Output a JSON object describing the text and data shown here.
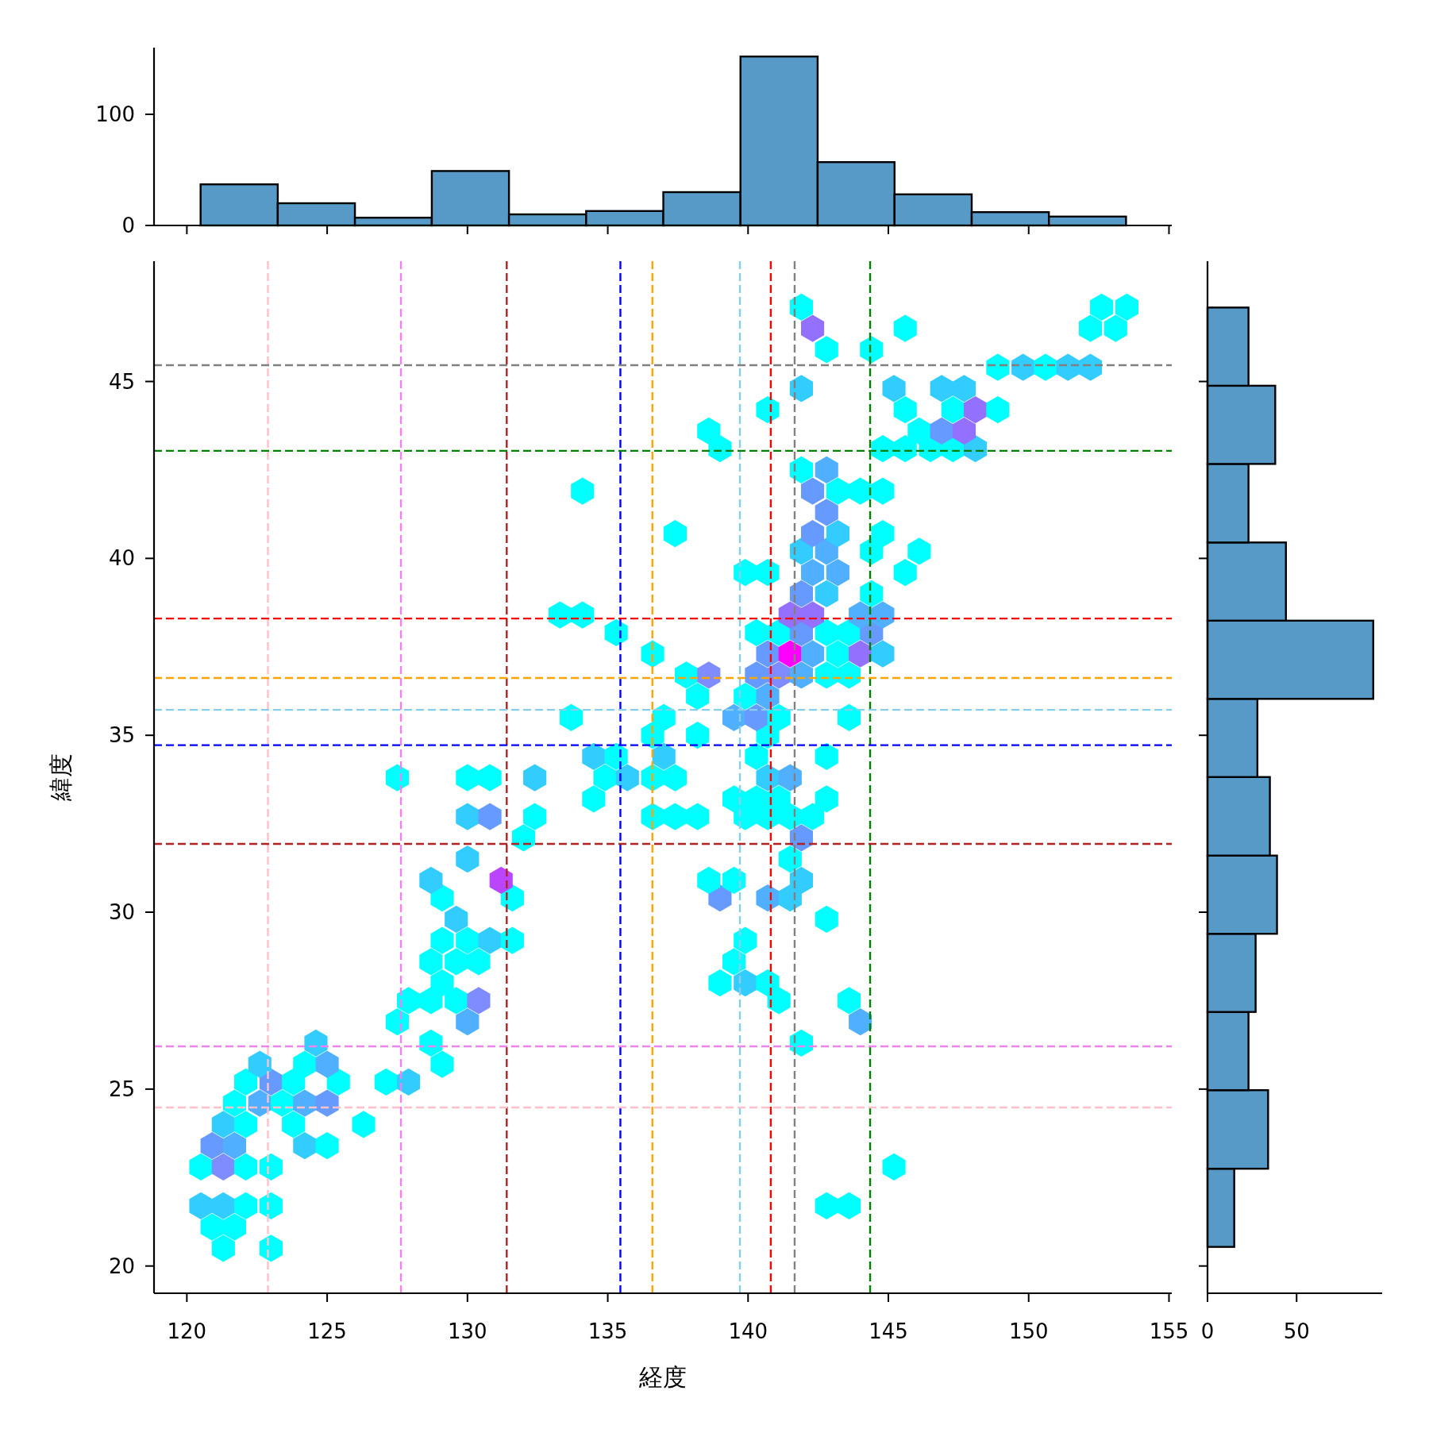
{
  "chart_data": [
    {
      "type": "scatter",
      "xlabel": "経度",
      "ylabel": "緯度",
      "xlim": [
        118.83,
        155.1
      ],
      "ylim": [
        19.23,
        48.4
      ],
      "xticks": [
        120,
        125,
        130,
        135,
        140,
        145,
        150,
        155
      ],
      "yticks": [
        20,
        25,
        30,
        35,
        40,
        45
      ],
      "grid": false,
      "x": [
        121.3,
        123.0,
        120.9,
        121.7,
        120.5,
        121.3,
        122.1,
        123.0,
        142.8,
        143.6,
        120.5,
        121.3,
        122.1,
        123.0,
        145.2,
        120.9,
        121.7,
        124.2,
        125.0,
        121.3,
        122.1,
        123.8,
        126.3,
        121.7,
        122.6,
        123.4,
        124.2,
        125.0,
        122.1,
        123.0,
        123.8,
        125.4,
        127.1,
        127.9,
        122.6,
        124.2,
        125.0,
        129.1,
        124.6,
        128.7,
        141.9,
        127.5,
        130.0,
        144.0,
        127.9,
        128.7,
        129.6,
        130.4,
        141.1,
        143.6,
        129.1,
        139.0,
        139.9,
        140.7,
        128.7,
        129.6,
        130.4,
        139.5,
        129.1,
        130.0,
        130.8,
        131.6,
        139.9,
        129.6,
        142.8,
        129.1,
        131.6,
        139.0,
        140.7,
        141.5,
        128.7,
        131.2,
        138.6,
        139.5,
        141.9,
        130.0,
        141.5,
        132.0,
        141.9,
        130.0,
        130.8,
        132.4,
        136.6,
        137.4,
        138.2,
        139.9,
        140.7,
        141.5,
        142.3,
        134.5,
        139.5,
        140.3,
        141.1,
        142.8,
        127.5,
        130.0,
        130.8,
        132.4,
        134.9,
        135.7,
        136.6,
        137.4,
        140.7,
        141.5,
        134.5,
        135.3,
        137.0,
        140.3,
        142.8,
        136.6,
        138.2,
        140.7,
        133.7,
        137.0,
        139.5,
        140.3,
        141.1,
        143.6,
        138.2,
        139.9,
        140.7,
        137.8,
        138.6,
        140.3,
        141.1,
        141.9,
        142.8,
        143.6,
        136.6,
        140.7,
        141.5,
        142.3,
        143.2,
        144.0,
        144.8,
        135.3,
        140.3,
        141.1,
        141.9,
        142.8,
        143.6,
        144.4,
        133.3,
        134.1,
        141.5,
        142.3,
        144.0,
        144.8,
        141.9,
        142.8,
        144.4,
        139.9,
        140.7,
        142.3,
        143.2,
        145.6,
        141.9,
        142.8,
        144.4,
        146.1,
        137.4,
        142.3,
        143.2,
        144.8,
        142.8,
        134.1,
        142.3,
        143.2,
        144.0,
        144.8,
        141.9,
        142.8,
        139.0,
        144.8,
        145.6,
        146.5,
        147.3,
        148.1,
        138.6,
        146.1,
        146.9,
        147.7,
        140.7,
        145.6,
        147.3,
        148.1,
        148.9,
        141.9,
        145.2,
        146.9,
        147.7,
        148.9,
        149.8,
        150.6,
        151.4,
        152.2,
        142.8,
        144.4,
        142.3,
        145.6,
        152.2,
        153.1,
        141.9,
        152.6,
        153.5
      ],
      "values": [
        20.5,
        20.5,
        21.1,
        21.1,
        21.7,
        21.7,
        21.7,
        21.7,
        21.7,
        21.7,
        22.8,
        22.8,
        22.8,
        22.8,
        22.8,
        23.4,
        23.4,
        23.4,
        23.4,
        24.0,
        24.0,
        24.0,
        24.0,
        24.6,
        24.6,
        24.6,
        24.6,
        24.6,
        25.2,
        25.2,
        25.2,
        25.2,
        25.2,
        25.2,
        25.7,
        25.7,
        25.7,
        25.7,
        26.3,
        26.3,
        26.3,
        26.9,
        26.9,
        26.9,
        27.5,
        27.5,
        27.5,
        27.5,
        27.5,
        27.5,
        28.0,
        28.0,
        28.0,
        28.0,
        28.6,
        28.6,
        28.6,
        28.6,
        29.2,
        29.2,
        29.2,
        29.2,
        29.2,
        29.8,
        29.8,
        30.4,
        30.4,
        30.4,
        30.4,
        30.4,
        30.9,
        30.9,
        30.9,
        30.9,
        30.9,
        31.5,
        31.5,
        32.1,
        32.1,
        32.7,
        32.7,
        32.7,
        32.7,
        32.7,
        32.7,
        32.7,
        32.7,
        32.7,
        32.7,
        33.2,
        33.2,
        33.2,
        33.2,
        33.2,
        33.8,
        33.8,
        33.8,
        33.8,
        33.8,
        33.8,
        33.8,
        33.8,
        33.8,
        33.8,
        34.4,
        34.4,
        34.4,
        34.4,
        34.4,
        35.0,
        35.0,
        35.0,
        35.5,
        35.5,
        35.5,
        35.5,
        35.5,
        35.5,
        36.1,
        36.1,
        36.1,
        36.7,
        36.7,
        36.7,
        36.7,
        36.7,
        36.7,
        36.7,
        37.3,
        37.3,
        37.3,
        37.3,
        37.3,
        37.3,
        37.3,
        37.9,
        37.9,
        37.9,
        37.9,
        37.9,
        37.9,
        37.9,
        38.4,
        38.4,
        38.4,
        38.4,
        38.4,
        38.4,
        39.0,
        39.0,
        39.0,
        39.6,
        39.6,
        39.6,
        39.6,
        39.6,
        40.2,
        40.2,
        40.2,
        40.2,
        40.7,
        40.7,
        40.7,
        40.7,
        41.3,
        41.9,
        41.9,
        41.9,
        41.9,
        41.9,
        42.5,
        42.5,
        43.1,
        43.1,
        43.1,
        43.1,
        43.1,
        43.1,
        43.6,
        43.6,
        43.6,
        43.6,
        44.2,
        44.2,
        44.2,
        44.2,
        44.2,
        44.8,
        44.8,
        44.8,
        44.8,
        45.4,
        45.4,
        45.4,
        45.4,
        45.4,
        45.9,
        45.9,
        46.5,
        46.5,
        46.5,
        46.5,
        47.1,
        47.1,
        47.1
      ],
      "colors": [
        "#00ffff",
        "#00ffff",
        "#00ffff",
        "#00ffff",
        "#33ccff",
        "#33ccff",
        "#00ffff",
        "#00ffff",
        "#00ffff",
        "#00ffff",
        "#00ffff",
        "#7f8cff",
        "#00ffff",
        "#00ffff",
        "#00ffff",
        "#669aff",
        "#50b0ff",
        "#33ccff",
        "#00ffff",
        "#33ccff",
        "#00ffff",
        "#00ffff",
        "#00ffff",
        "#00ffff",
        "#50b0ff",
        "#00ffff",
        "#50b0ff",
        "#669aff",
        "#00ffff",
        "#669aff",
        "#00ffff",
        "#00ffff",
        "#00ffff",
        "#33ccff",
        "#33ccff",
        "#00ffff",
        "#50b0ff",
        "#00ffff",
        "#33ccff",
        "#00ffff",
        "#00ffff",
        "#00ffff",
        "#50b0ff",
        "#50b0ff",
        "#00ffff",
        "#00ffff",
        "#00ffff",
        "#7f8cff",
        "#00ffff",
        "#00ffff",
        "#00ffff",
        "#00ffff",
        "#33ccff",
        "#00ffff",
        "#00ffff",
        "#00ffff",
        "#00ffff",
        "#00ffff",
        "#00ffff",
        "#00ffff",
        "#33ccff",
        "#00ffff",
        "#00ffff",
        "#33ccff",
        "#00ffff",
        "#00ffff",
        "#00ffff",
        "#669aff",
        "#50b0ff",
        "#33ccff",
        "#33ccff",
        "#bb44ff",
        "#00ffff",
        "#00ffff",
        "#33ccff",
        "#33ccff",
        "#00ffff",
        "#00ffff",
        "#669aff",
        "#33ccff",
        "#669aff",
        "#00ffff",
        "#00ffff",
        "#00ffff",
        "#00ffff",
        "#00ffff",
        "#00ffff",
        "#00ffff",
        "#00ffff",
        "#00ffff",
        "#00ffff",
        "#00ffff",
        "#00ffff",
        "#00ffff",
        "#00ffff",
        "#00ffff",
        "#00ffff",
        "#33ccff",
        "#00ffff",
        "#33ccff",
        "#00ffff",
        "#00ffff",
        "#33ccff",
        "#50b0ff",
        "#33ccff",
        "#00ffff",
        "#33ccff",
        "#00ffff",
        "#00ffff",
        "#00ffff",
        "#00ffff",
        "#00ffff",
        "#00ffff",
        "#00ffff",
        "#50b0ff",
        "#669aff",
        "#00ffff",
        "#00ffff",
        "#00ffff",
        "#00ffff",
        "#50b0ff",
        "#00ffff",
        "#7f8cff",
        "#669aff",
        "#7f8cff",
        "#50b0ff",
        "#00ffff",
        "#00ffff",
        "#00ffff",
        "#669aff",
        "#ff00ff",
        "#50b0ff",
        "#00ffff",
        "#9470ff",
        "#33ccff",
        "#00ffff",
        "#00ffff",
        "#00ffff",
        "#669aff",
        "#00ffff",
        "#00ffff",
        "#669aff",
        "#00ffff",
        "#00ffff",
        "#9470ff",
        "#9470ff",
        "#50b0ff",
        "#50b0ff",
        "#669aff",
        "#33ccff",
        "#00ffff",
        "#00ffff",
        "#00ffff",
        "#50b0ff",
        "#50b0ff",
        "#00ffff",
        "#33ccff",
        "#50b0ff",
        "#00ffff",
        "#00ffff",
        "#00ffff",
        "#669aff",
        "#33ccff",
        "#00ffff",
        "#669aff",
        "#00ffff",
        "#669aff",
        "#00ffff",
        "#00ffff",
        "#00ffff",
        "#00ffff",
        "#50b0ff",
        "#00ffff",
        "#00ffff",
        "#00ffff",
        "#00ffff",
        "#00ffff",
        "#33ccff",
        "#00ffff",
        "#00ffff",
        "#669aff",
        "#9470ff",
        "#00ffff",
        "#00ffff",
        "#00ffff",
        "#9470ff",
        "#00ffff",
        "#33ccff",
        "#33ccff",
        "#33ccff",
        "#33ccff",
        "#00ffff",
        "#33ccff",
        "#00ffff",
        "#33ccff",
        "#33ccff",
        "#00ffff",
        "#00ffff",
        "#9470ff",
        "#00ffff",
        "#00ffff",
        "#00ffff",
        "#00ffff",
        "#00ffff",
        "#00ffff"
      ],
      "ref_lines": [
        {
          "axis": "x",
          "value": 122.89,
          "color": "#ffc0cb",
          "line_style": "dashed"
        },
        {
          "axis": "x",
          "value": 127.63,
          "color": "#ee82ee",
          "line_style": "dashed"
        },
        {
          "axis": "x",
          "value": 131.4,
          "color": "#b22222",
          "line_style": "dashed"
        },
        {
          "axis": "x",
          "value": 135.45,
          "color": "#0000ff",
          "line_style": "dashed"
        },
        {
          "axis": "x",
          "value": 136.59,
          "color": "#ffa500",
          "line_style": "dashed"
        },
        {
          "axis": "x",
          "value": 139.71,
          "color": "#87ceeb",
          "line_style": "dashed"
        },
        {
          "axis": "x",
          "value": 140.81,
          "color": "#ff0000",
          "line_style": "dashed"
        },
        {
          "axis": "x",
          "value": 141.66,
          "color": "#808080",
          "line_style": "dashed"
        },
        {
          "axis": "x",
          "value": 144.35,
          "color": "#008000",
          "line_style": "dashed"
        },
        {
          "axis": "y",
          "value": 45.46,
          "color": "#808080",
          "line_style": "dashed"
        },
        {
          "axis": "y",
          "value": 43.04,
          "color": "#008000",
          "line_style": "dashed"
        },
        {
          "axis": "y",
          "value": 38.3,
          "color": "#ff0000",
          "line_style": "dashed"
        },
        {
          "axis": "y",
          "value": 36.62,
          "color": "#ffa500",
          "line_style": "dashed"
        },
        {
          "axis": "y",
          "value": 35.72,
          "color": "#87ceeb",
          "line_style": "dashed"
        },
        {
          "axis": "y",
          "value": 34.72,
          "color": "#0000ff",
          "line_style": "dashed"
        },
        {
          "axis": "y",
          "value": 31.93,
          "color": "#b22222",
          "line_style": "dashed"
        },
        {
          "axis": "y",
          "value": 26.21,
          "color": "#ee82ee",
          "line_style": "dashed"
        },
        {
          "axis": "y",
          "value": 24.48,
          "color": "#ffc0cb",
          "line_style": "dashed"
        }
      ]
    },
    {
      "type": "histogram",
      "color": "#5799c7",
      "bins": [
        120.49,
        123.24,
        125.99,
        128.73,
        131.48,
        134.23,
        136.98,
        139.73,
        142.48,
        145.22,
        147.97,
        150.72,
        153.47
      ],
      "values": [
        37,
        20,
        7,
        49,
        10,
        13,
        30,
        152,
        57,
        28,
        12,
        8
      ],
      "xlim": [
        118.83,
        155.1
      ],
      "ylim": [
        0,
        160
      ],
      "xticks": [
        120,
        125,
        130,
        135,
        140,
        145,
        150,
        155
      ],
      "yticks": [
        0,
        100
      ],
      "tick_labels": "y",
      "grid": false
    },
    {
      "type": "histogram",
      "orientation": "horizontal",
      "color": "#5799c7",
      "bins": [
        20.54,
        22.75,
        24.97,
        27.18,
        29.39,
        31.6,
        33.82,
        36.03,
        38.24,
        40.45,
        42.67,
        44.88,
        47.09
      ],
      "values": [
        15,
        34,
        23,
        27,
        39,
        35,
        28,
        93,
        44,
        23,
        38,
        23
      ],
      "xlim": [
        0,
        98
      ],
      "ylim": [
        19.23,
        48.4
      ],
      "xticks": [
        0,
        50
      ],
      "yticks": [
        20,
        25,
        30,
        35,
        40,
        45
      ],
      "tick_labels": "x",
      "grid": false
    }
  ]
}
